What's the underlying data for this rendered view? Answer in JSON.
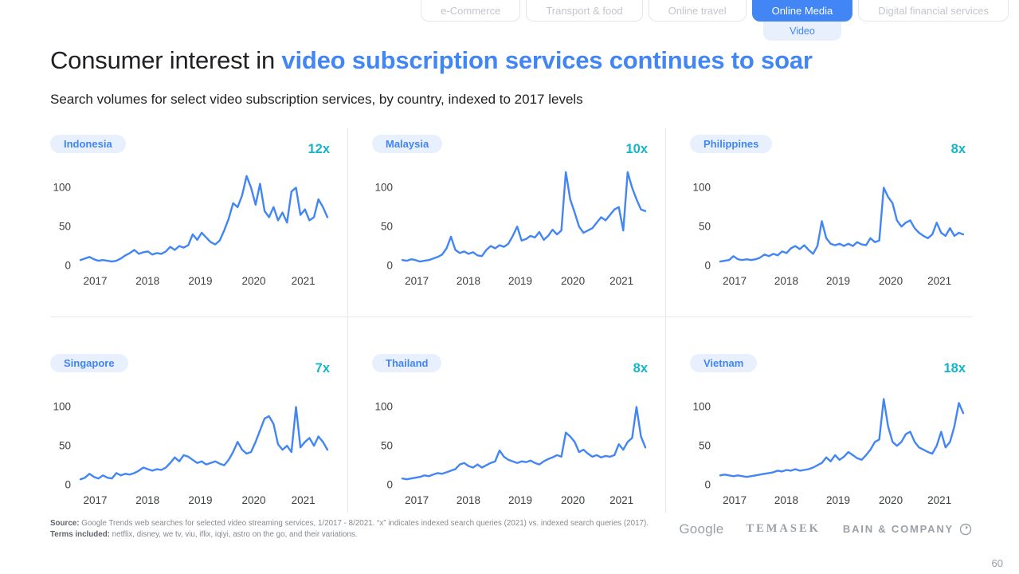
{
  "colors": {
    "accent_blue": "#4285f4",
    "accent_teal": "#12b5cb",
    "pill_bg": "#e8f0fe",
    "line_color": "#4285f4"
  },
  "tabs": {
    "items": [
      {
        "label": "e-Commerce",
        "active": false
      },
      {
        "label": "Transport & food",
        "active": false
      },
      {
        "label": "Online travel",
        "active": false
      },
      {
        "label": "Online Media",
        "active": true
      },
      {
        "label": "Digital financial services",
        "active": false
      }
    ],
    "subtab": "Video"
  },
  "title": {
    "prefix": "Consumer interest in ",
    "highlight": "video subscription services continues to soar"
  },
  "subtitle": "Search volumes for select video subscription services, by country, indexed to 2017 levels",
  "chart_data": {
    "type": "line",
    "title": "Search volumes for select video subscription services, by country, indexed to 2017 levels",
    "x_range": "monthly, 1/2017 - 8/2021",
    "x_ticks": [
      "2017",
      "2018",
      "2019",
      "2020",
      "2021"
    ],
    "y_ticks": [
      0,
      50,
      100
    ],
    "ylim": [
      0,
      125
    ],
    "grid": false,
    "legend": "none",
    "charts": [
      {
        "country": "Indonesia",
        "multiplier": "12x",
        "values": [
          7,
          9,
          11,
          8,
          6,
          7,
          6,
          5,
          6,
          9,
          13,
          16,
          20,
          15,
          17,
          18,
          14,
          16,
          15,
          18,
          24,
          20,
          25,
          23,
          26,
          40,
          33,
          42,
          36,
          30,
          27,
          32,
          45,
          60,
          80,
          75,
          90,
          115,
          100,
          78,
          105,
          70,
          62,
          75,
          58,
          68,
          55,
          95,
          100,
          65,
          72,
          58,
          62,
          85,
          75,
          62
        ]
      },
      {
        "country": "Malaysia",
        "multiplier": "10x",
        "values": [
          7,
          6,
          8,
          7,
          5,
          6,
          7,
          9,
          11,
          14,
          22,
          37,
          20,
          16,
          18,
          15,
          17,
          13,
          12,
          20,
          25,
          22,
          26,
          24,
          28,
          38,
          50,
          32,
          34,
          38,
          36,
          43,
          33,
          38,
          46,
          40,
          45,
          120,
          85,
          68,
          50,
          42,
          45,
          48,
          55,
          62,
          58,
          65,
          72,
          75,
          45,
          120,
          100,
          85,
          72,
          70
        ]
      },
      {
        "country": "Philippines",
        "multiplier": "8x",
        "values": [
          5,
          6,
          7,
          12,
          8,
          7,
          8,
          7,
          8,
          10,
          14,
          12,
          15,
          13,
          18,
          16,
          22,
          25,
          21,
          26,
          20,
          15,
          25,
          57,
          35,
          28,
          26,
          28,
          25,
          28,
          25,
          30,
          27,
          26,
          35,
          30,
          32,
          100,
          88,
          80,
          58,
          50,
          55,
          58,
          48,
          42,
          38,
          35,
          40,
          55,
          42,
          38,
          48,
          38,
          42,
          40
        ]
      },
      {
        "country": "Singapore",
        "multiplier": "7x",
        "values": [
          7,
          9,
          14,
          10,
          8,
          12,
          9,
          8,
          15,
          12,
          14,
          13,
          15,
          18,
          22,
          20,
          18,
          20,
          19,
          22,
          28,
          35,
          30,
          38,
          36,
          32,
          28,
          30,
          26,
          28,
          30,
          27,
          25,
          32,
          42,
          55,
          45,
          40,
          42,
          55,
          70,
          85,
          88,
          78,
          52,
          45,
          50,
          42,
          100,
          48,
          55,
          60,
          50,
          62,
          55,
          45
        ]
      },
      {
        "country": "Thailand",
        "multiplier": "8x",
        "values": [
          8,
          7,
          8,
          9,
          10,
          12,
          11,
          13,
          15,
          14,
          16,
          18,
          20,
          26,
          28,
          24,
          22,
          26,
          22,
          25,
          28,
          30,
          44,
          36,
          32,
          30,
          28,
          30,
          29,
          31,
          28,
          26,
          30,
          33,
          35,
          38,
          36,
          67,
          62,
          55,
          42,
          45,
          40,
          36,
          38,
          35,
          37,
          36,
          38,
          52,
          45,
          55,
          60,
          100,
          62,
          48
        ]
      },
      {
        "country": "Vietnam",
        "multiplier": "18x",
        "values": [
          12,
          13,
          12,
          11,
          12,
          11,
          10,
          11,
          12,
          13,
          14,
          15,
          16,
          18,
          17,
          19,
          18,
          20,
          18,
          19,
          20,
          22,
          25,
          28,
          35,
          30,
          38,
          32,
          36,
          42,
          38,
          34,
          32,
          38,
          45,
          55,
          58,
          110,
          75,
          55,
          50,
          55,
          65,
          68,
          55,
          48,
          45,
          42,
          40,
          50,
          68,
          48,
          55,
          75,
          105,
          92
        ]
      }
    ]
  },
  "footer": {
    "source_label": "Source:",
    "source_text": " Google Trends web searches for selected video streaming services, 1/2017 - 8/2021. “x” indicates indexed search queries (2021) vs. indexed search queries (2017).",
    "terms_label": "Terms included:",
    "terms_text": " netflix, disney, we tv, viu, iflix, iqiyi, astro on the go, and their variations."
  },
  "logos": {
    "google": "Google",
    "temasek": "TEMASEK",
    "bain": "BAIN & COMPANY"
  },
  "page_number": "60"
}
